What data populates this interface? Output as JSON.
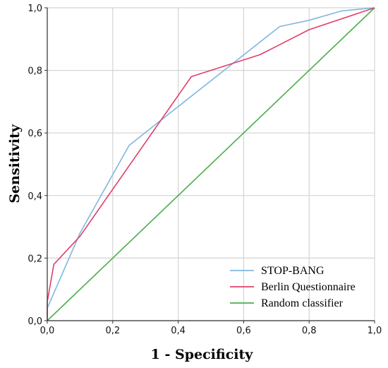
{
  "chart_data": {
    "type": "line",
    "xlabel": "1 - Specificity",
    "ylabel": "Sensitivity",
    "xlim": [
      0,
      1
    ],
    "ylim": [
      0,
      1
    ],
    "grid": true,
    "legend_position": "bottom-right",
    "x_ticks": [
      "0,0",
      "0,2",
      "0,4",
      "0,6",
      "0,8",
      "1,0"
    ],
    "y_ticks": [
      "0,0",
      "0,2",
      "0,4",
      "0,6",
      "0,8",
      "1,0"
    ],
    "series": [
      {
        "name": "STOP-BANG",
        "color": "#7fb7e0",
        "points": [
          [
            0,
            0.01
          ],
          [
            0,
            0.04
          ],
          [
            0.1,
            0.28
          ],
          [
            0.25,
            0.56
          ],
          [
            0.54,
            0.8
          ],
          [
            0.71,
            0.94
          ],
          [
            0.8,
            0.96
          ],
          [
            0.9,
            0.99
          ],
          [
            1,
            1
          ]
        ]
      },
      {
        "name": "Berlin Questionnaire",
        "color": "#e0406a",
        "points": [
          [
            0,
            0
          ],
          [
            0,
            0.06
          ],
          [
            0.02,
            0.18
          ],
          [
            0.1,
            0.27
          ],
          [
            0.44,
            0.78
          ],
          [
            0.65,
            0.85
          ],
          [
            0.8,
            0.93
          ],
          [
            1,
            1
          ]
        ]
      },
      {
        "name": "Random classifier",
        "color": "#4cad4c",
        "points": [
          [
            0,
            0
          ],
          [
            1,
            1
          ]
        ]
      }
    ]
  }
}
